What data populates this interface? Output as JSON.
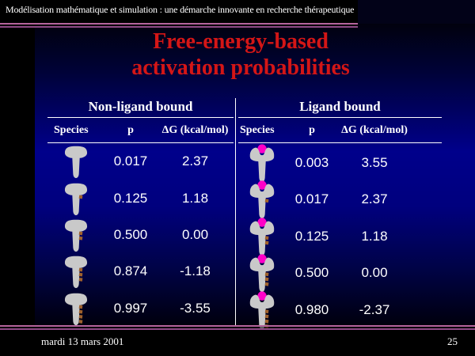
{
  "slide": {
    "header": "Modélisation mathématique et simulation : une démarche innovante en recherche thérapeutique",
    "title_line1": "Free-energy-based",
    "title_line2": "activation probabilities",
    "footer_date": "mardi 13 mars 2001",
    "page_number": "25"
  },
  "colors": {
    "title_red": "#d41616",
    "background_navy": "#00008b",
    "divider_pink": "#b4649b",
    "receptor_gray": "#c9c9c9",
    "ligand_magenta": "#ff00c8",
    "site_brown": "#a0622d",
    "text_white": "#ffffff"
  },
  "tables": [
    {
      "group_header": "Non-ligand bound",
      "columns": [
        "Species",
        "p",
        "ΔG (kcal/mol)"
      ],
      "rows": [
        {
          "icon": "receptor-0-sites-icon",
          "ligand": false,
          "sites": 0,
          "p": "0.017",
          "dG": "2.37"
        },
        {
          "icon": "receptor-1-site-icon",
          "ligand": false,
          "sites": 1,
          "p": "0.125",
          "dG": "1.18"
        },
        {
          "icon": "receptor-2-sites-icon",
          "ligand": false,
          "sites": 2,
          "p": "0.500",
          "dG": "0.00"
        },
        {
          "icon": "receptor-3-sites-icon",
          "ligand": false,
          "sites": 3,
          "p": "0.874",
          "dG": "-1.18"
        },
        {
          "icon": "receptor-4-sites-icon",
          "ligand": false,
          "sites": 4,
          "p": "0.997",
          "dG": "-3.55"
        }
      ]
    },
    {
      "group_header": "Ligand bound",
      "columns": [
        "Species",
        "p",
        "ΔG (kcal/mol)"
      ],
      "rows": [
        {
          "icon": "ligand-receptor-0-sites-icon",
          "ligand": true,
          "sites": 0,
          "p": "0.003",
          "dG": "3.55"
        },
        {
          "icon": "ligand-receptor-1-site-icon",
          "ligand": true,
          "sites": 1,
          "p": "0.017",
          "dG": "2.37"
        },
        {
          "icon": "ligand-receptor-2-sites-icon",
          "ligand": true,
          "sites": 2,
          "p": "0.125",
          "dG": "1.18"
        },
        {
          "icon": "ligand-receptor-3-sites-icon",
          "ligand": true,
          "sites": 3,
          "p": "0.500",
          "dG": "0.00"
        },
        {
          "icon": "ligand-receptor-4-sites-icon",
          "ligand": true,
          "sites": 4,
          "p": "0.980",
          "dG": "-2.37"
        }
      ]
    }
  ],
  "chart_data": {
    "type": "table",
    "title": "Free-energy-based activation probabilities",
    "groups": [
      "Non-ligand bound",
      "Ligand bound"
    ],
    "columns": [
      "Species",
      "p",
      "ΔG (kcal/mol)"
    ],
    "non_ligand_bound": [
      {
        "sites": 0,
        "p": 0.017,
        "dG": 2.37
      },
      {
        "sites": 1,
        "p": 0.125,
        "dG": 1.18
      },
      {
        "sites": 2,
        "p": 0.5,
        "dG": 0.0
      },
      {
        "sites": 3,
        "p": 0.874,
        "dG": -1.18
      },
      {
        "sites": 4,
        "p": 0.997,
        "dG": -3.55
      }
    ],
    "ligand_bound": [
      {
        "sites": 0,
        "p": 0.003,
        "dG": 3.55
      },
      {
        "sites": 1,
        "p": 0.017,
        "dG": 2.37
      },
      {
        "sites": 2,
        "p": 0.125,
        "dG": 1.18
      },
      {
        "sites": 3,
        "p": 0.5,
        "dG": 0.0
      },
      {
        "sites": 4,
        "p": 0.98,
        "dG": -2.37
      }
    ]
  }
}
